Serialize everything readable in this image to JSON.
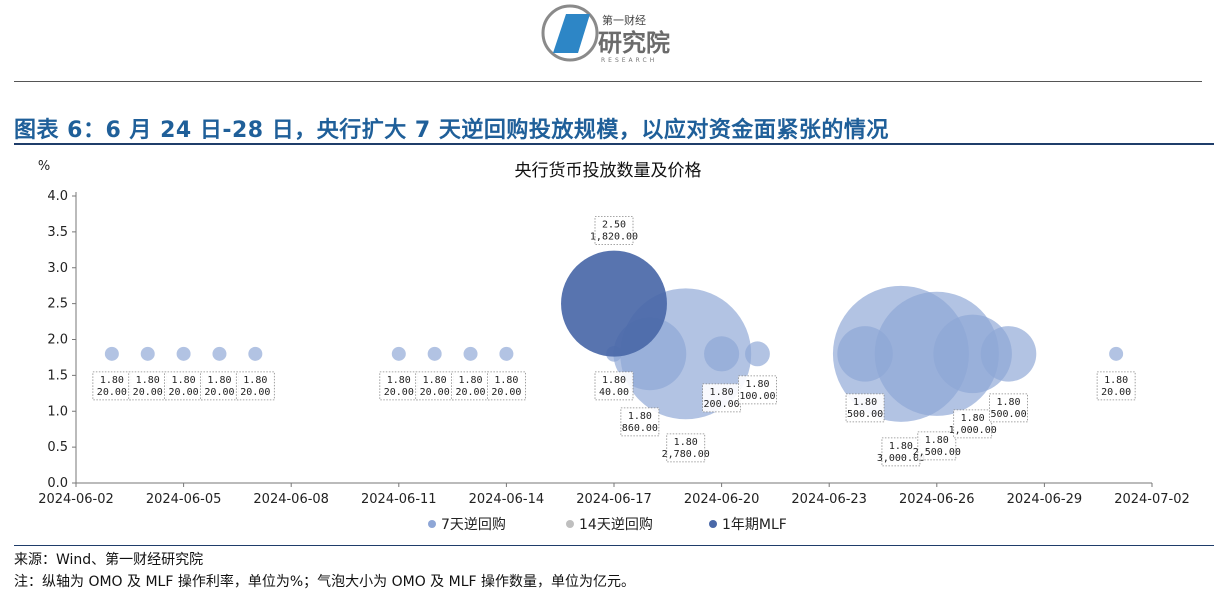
{
  "header": {
    "logo_text": "研究院",
    "logo_subtext": "第一财经",
    "logo_caption": "RESEARCH"
  },
  "figure": {
    "title": "图表 6：6 月 24 日-28 日，央行扩大 7 天逆回购投放规模，以应对资金面紧张的情况"
  },
  "colors": {
    "rr7": "#8ea6d6",
    "rr14": "#bfbfbf",
    "mlf": "#4a68a8",
    "title_blue": "#1f5f99",
    "rule": "#1f3d6a"
  },
  "chart_data": {
    "type": "bubble",
    "title": "央行货币投放数量及价格",
    "ylabel": "%",
    "ylim": [
      0,
      4.0
    ],
    "yticks": [
      "0.0",
      "0.5",
      "1.0",
      "1.5",
      "2.0",
      "2.5",
      "3.0",
      "3.5",
      "4.0"
    ],
    "xlim": [
      "2024-06-02",
      "2024-07-02"
    ],
    "xticks": [
      "2024-06-02",
      "2024-06-05",
      "2024-06-08",
      "2024-06-11",
      "2024-06-14",
      "2024-06-17",
      "2024-06-20",
      "2024-06-23",
      "2024-06-26",
      "2024-06-29",
      "2024-07-02"
    ],
    "grid": false,
    "legend": "bottom",
    "series": [
      {
        "name": "7天逆回购",
        "points": [
          {
            "date": "2024-06-03",
            "rate": 1.8,
            "amount": 20,
            "label": [
              "1.80",
              "20.00"
            ]
          },
          {
            "date": "2024-06-04",
            "rate": 1.8,
            "amount": 20,
            "label": [
              "1.80",
              "20.00"
            ]
          },
          {
            "date": "2024-06-05",
            "rate": 1.8,
            "amount": 20,
            "label": [
              "1.80",
              "20.00"
            ]
          },
          {
            "date": "2024-06-06",
            "rate": 1.8,
            "amount": 20,
            "label": [
              "1.80",
              "20.00"
            ]
          },
          {
            "date": "2024-06-07",
            "rate": 1.8,
            "amount": 20,
            "label": [
              "1.80",
              "20.00"
            ]
          },
          {
            "date": "2024-06-11",
            "rate": 1.8,
            "amount": 20,
            "label": [
              "1.80",
              "20.00"
            ]
          },
          {
            "date": "2024-06-12",
            "rate": 1.8,
            "amount": 20,
            "label": [
              "1.80",
              "20.00"
            ]
          },
          {
            "date": "2024-06-13",
            "rate": 1.8,
            "amount": 20,
            "label": [
              "1.80",
              "20.00"
            ]
          },
          {
            "date": "2024-06-14",
            "rate": 1.8,
            "amount": 20,
            "label": [
              "1.80",
              "20.00"
            ]
          },
          {
            "date": "2024-06-17",
            "rate": 1.8,
            "amount": 40,
            "label": [
              "1.80",
              "40.00"
            ]
          },
          {
            "date": "2024-06-18",
            "rate": 1.8,
            "amount": 860,
            "label": [
              "1.80",
              "860.00"
            ]
          },
          {
            "date": "2024-06-19",
            "rate": 1.8,
            "amount": 2780,
            "label": [
              "1.80",
              "2,780.00"
            ]
          },
          {
            "date": "2024-06-20",
            "rate": 1.8,
            "amount": 200,
            "label": [
              "1.80",
              "200.00"
            ]
          },
          {
            "date": "2024-06-21",
            "rate": 1.8,
            "amount": 100,
            "label": [
              "1.80",
              "100.00"
            ]
          },
          {
            "date": "2024-06-24",
            "rate": 1.8,
            "amount": 500,
            "label": [
              "1.80",
              "500.00"
            ]
          },
          {
            "date": "2024-06-25",
            "rate": 1.8,
            "amount": 3000,
            "label": [
              "1.80",
              "3,000.00"
            ]
          },
          {
            "date": "2024-06-26",
            "rate": 1.8,
            "amount": 2500,
            "label": [
              "1.80",
              "2,500.00"
            ]
          },
          {
            "date": "2024-06-27",
            "rate": 1.8,
            "amount": 1000,
            "label": [
              "1.80",
              "1,000.00"
            ]
          },
          {
            "date": "2024-06-28",
            "rate": 1.8,
            "amount": 500,
            "label": [
              "1.80",
              "500.00"
            ]
          },
          {
            "date": "2024-07-01",
            "rate": 1.8,
            "amount": 20,
            "label": [
              "1.80",
              "20.00"
            ]
          }
        ]
      },
      {
        "name": "14天逆回购",
        "points": []
      },
      {
        "name": "1年期MLF",
        "points": [
          {
            "date": "2024-06-17",
            "rate": 2.5,
            "amount": 1820,
            "label": [
              "2.50",
              "1,820.00"
            ]
          }
        ]
      }
    ]
  },
  "notes": {
    "source": "来源：Wind、第一财经研究院",
    "footnote": "注：纵轴为 OMO 及 MLF 操作利率，单位为%；气泡大小为 OMO 及 MLF 操作数量，单位为亿元。"
  }
}
